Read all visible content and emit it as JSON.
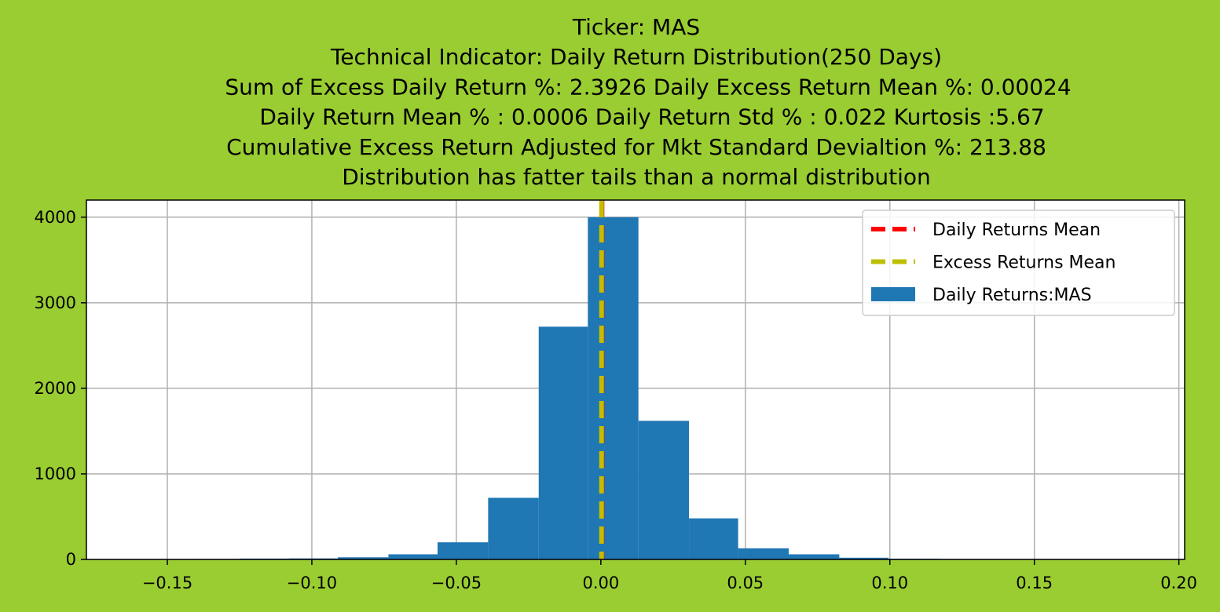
{
  "chart_data": {
    "type": "bar",
    "title_lines": [
      "Ticker: MAS",
      "Technical Indicator: Daily Return Distribution(250 Days)",
      "Sum of Excess Daily Return %: 2.3926   Daily Excess Return Mean %: 0.00024",
      "Daily Return Mean % : 0.0006    Daily Return Std % : 0.022  Kurtosis :5.67",
      "Cumulative Excess Return Adjusted for Mkt Standard Devialtion %: 213.88",
      "Distribution has fatter tails than a normal distribution"
    ],
    "xlim": [
      -0.178,
      0.202
    ],
    "ylim": [
      0,
      4200
    ],
    "x_ticks": [
      -0.15,
      -0.1,
      -0.05,
      0.0,
      0.05,
      0.1,
      0.15,
      0.2
    ],
    "x_tick_labels": [
      "−0.15",
      "−0.10",
      "−0.05",
      "0.00",
      "0.05",
      "0.10",
      "0.15",
      "0.20"
    ],
    "y_ticks": [
      0,
      1000,
      2000,
      3000,
      4000
    ],
    "y_tick_labels": [
      "0",
      "1000",
      "2000",
      "3000",
      "4000"
    ],
    "grid": true,
    "legend_position": "top-right",
    "series": [
      {
        "name": "Daily Returns:MAS",
        "type": "histogram",
        "color": "#1f77b4",
        "bins": [
          {
            "x0": -0.16,
            "x1": -0.1425,
            "count": 3
          },
          {
            "x0": -0.1425,
            "x1": -0.125,
            "count": 5
          },
          {
            "x0": -0.125,
            "x1": -0.108,
            "count": 10
          },
          {
            "x0": -0.108,
            "x1": -0.091,
            "count": 12
          },
          {
            "x0": -0.091,
            "x1": -0.0735,
            "count": 25
          },
          {
            "x0": -0.0735,
            "x1": -0.0565,
            "count": 60
          },
          {
            "x0": -0.0565,
            "x1": -0.039,
            "count": 200
          },
          {
            "x0": -0.039,
            "x1": -0.0215,
            "count": 720
          },
          {
            "x0": -0.0215,
            "x1": -0.0045,
            "count": 2720
          },
          {
            "x0": -0.0045,
            "x1": 0.013,
            "count": 4000
          },
          {
            "x0": 0.013,
            "x1": 0.0305,
            "count": 1620
          },
          {
            "x0": 0.0305,
            "x1": 0.0475,
            "count": 480
          },
          {
            "x0": 0.0475,
            "x1": 0.065,
            "count": 130
          },
          {
            "x0": 0.065,
            "x1": 0.0825,
            "count": 60
          },
          {
            "x0": 0.0825,
            "x1": 0.0995,
            "count": 20
          },
          {
            "x0": 0.0995,
            "x1": 0.117,
            "count": 8
          },
          {
            "x0": 0.117,
            "x1": 0.1345,
            "count": 3
          }
        ]
      },
      {
        "name": "Daily Returns Mean",
        "type": "vline",
        "x": 0.0006,
        "color": "#ff0000"
      },
      {
        "name": "Excess Returns Mean",
        "type": "vline",
        "x": 0.00024,
        "color": "#bfbf00"
      }
    ]
  },
  "colors": {
    "background": "#9acd32",
    "plot_background": "#ffffff",
    "grid": "#b0b0b0"
  }
}
